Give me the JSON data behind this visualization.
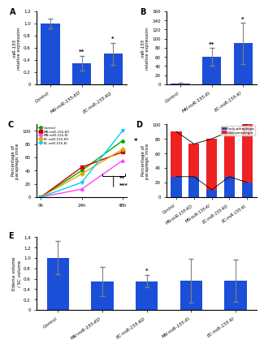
{
  "panel_A": {
    "categories": [
      "Control",
      "MN-miR-155-KO",
      "EC-miR-155-KO"
    ],
    "values": [
      1.0,
      0.35,
      0.5
    ],
    "errors": [
      0.08,
      0.12,
      0.18
    ],
    "bar_color": "#1c4fd8",
    "ylabel": "miR-155\nrelative expression",
    "ylim": [
      0,
      1.2
    ],
    "yticks": [
      0,
      0.2,
      0.4,
      0.6,
      0.8,
      1.0,
      1.2
    ],
    "significance": [
      "",
      "**",
      "*"
    ],
    "label": "A"
  },
  "panel_B": {
    "categories": [
      "Control",
      "MN-miR-155-KI",
      "EC-miR-155-KI"
    ],
    "values": [
      2,
      60,
      90
    ],
    "errors": [
      1,
      20,
      45
    ],
    "bar_color": "#1c4fd8",
    "ylabel": "miR-155\nrelative expression",
    "ylim": [
      0,
      160
    ],
    "yticks": [
      0,
      20,
      40,
      60,
      80,
      100,
      120,
      140,
      160
    ],
    "significance": [
      "",
      "**",
      "*"
    ],
    "label": "B"
  },
  "panel_C": {
    "timepoints": [
      0,
      1,
      2
    ],
    "xlabels": [
      "0h",
      "24h",
      "48h"
    ],
    "series": {
      "Control": {
        "values": [
          0,
          40,
          85
        ],
        "color": "#00aa00",
        "marker": "o"
      },
      "MN-miR-155-KO": {
        "values": [
          0,
          45,
          68
        ],
        "color": "#cc0000",
        "marker": "s"
      },
      "MN-miR-155-KI": {
        "values": [
          0,
          12,
          55
        ],
        "color": "#ff44ff",
        "marker": "^"
      },
      "EC-miR-155-KO": {
        "values": [
          0,
          35,
          72
        ],
        "color": "#ddaa00",
        "marker": "D"
      },
      "EC-miR-155-KI": {
        "values": [
          0,
          22,
          100
        ],
        "color": "#00ccff",
        "marker": "v"
      }
    },
    "ylabel": "Percentage of\nparaplegic mice",
    "ylim": [
      0,
      110
    ],
    "yticks": [
      0,
      20,
      40,
      60,
      80,
      100
    ],
    "label": "C"
  },
  "panel_D": {
    "categories": [
      "Control",
      "MN-miR-155-KO",
      "MN-miR-155-KI",
      "EC-miR-155-KO",
      "EC-miR-155-KI"
    ],
    "early": [
      28,
      28,
      10,
      28,
      20
    ],
    "late": [
      62,
      45,
      70,
      62,
      80
    ],
    "early_color": "#1c4fd8",
    "late_color": "#ee2222",
    "ylabel": "Percentage of\nparaplegic mice",
    "ylim": [
      0,
      100
    ],
    "yticks": [
      0,
      20,
      40,
      60,
      80,
      100
    ],
    "label": "D",
    "legend_labels": [
      "Early paraplegia",
      "Late paraplegia"
    ]
  },
  "panel_E": {
    "categories": [
      "Control",
      "MN-miR-155-KO",
      "EC-miR-155-KO",
      "MN-miR-155-KI",
      "EC-miR-155-KI"
    ],
    "values": [
      1.0,
      0.55,
      0.55,
      0.56,
      0.56
    ],
    "errors": [
      0.32,
      0.28,
      0.12,
      0.42,
      0.4
    ],
    "bar_color": "#1c4fd8",
    "ylabel": "Edema volume\n/ SC volume",
    "ylim": [
      0,
      1.4
    ],
    "yticks": [
      0,
      0.2,
      0.4,
      0.6,
      0.8,
      1.0,
      1.2,
      1.4
    ],
    "significance": [
      "",
      "",
      "*",
      "",
      ""
    ],
    "label": "E"
  }
}
